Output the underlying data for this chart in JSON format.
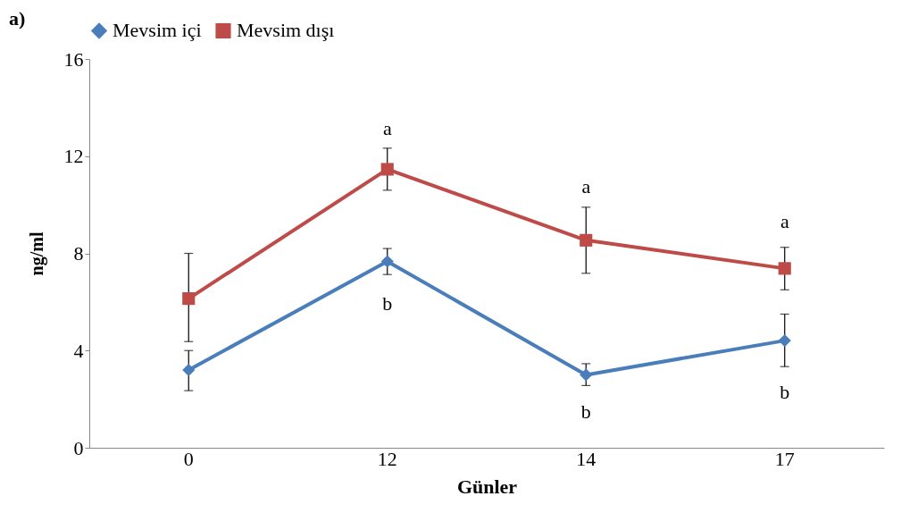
{
  "chart_data": {
    "type": "line",
    "title": "a)",
    "xlabel": "Günler",
    "ylabel": "ng/ml",
    "categories": [
      "0",
      "12",
      "14",
      "17"
    ],
    "series": [
      {
        "name": "Mevsim içi",
        "color": "#4a7ebb",
        "marker": "diamond",
        "values": [
          3.2,
          7.67,
          3.0,
          4.41
        ],
        "errors": [
          [
            2.35,
            4.0
          ],
          [
            7.13,
            8.2
          ],
          [
            2.56,
            3.46
          ],
          [
            3.34,
            5.5
          ]
        ]
      },
      {
        "name": "Mevsim dışı",
        "color": "#be4b48",
        "marker": "square",
        "values": [
          6.14,
          11.46,
          8.54,
          7.38
        ],
        "errors": [
          [
            4.37,
            8.0
          ],
          [
            10.6,
            12.33
          ],
          [
            7.18,
            9.9
          ],
          [
            6.5,
            8.25
          ]
        ]
      }
    ],
    "ylim": [
      0,
      16
    ],
    "yticks": [
      0,
      4,
      8,
      12,
      16
    ],
    "grid": false,
    "legend": "top",
    "annotations": [
      "a",
      "a",
      "a",
      "b",
      "b",
      "b"
    ]
  }
}
